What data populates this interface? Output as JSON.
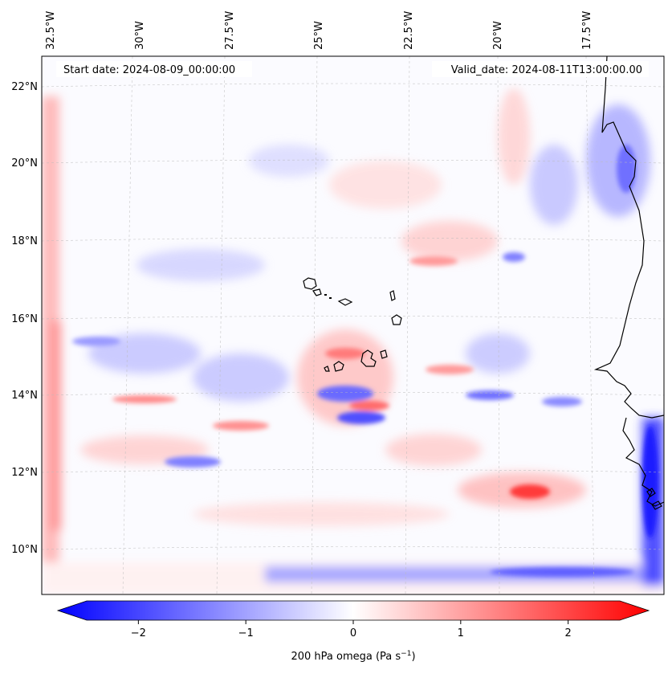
{
  "map": {
    "projection_note": "lat/lon",
    "top_labels": [
      "32.5°W",
      "30°W",
      "27.5°W",
      "25°W",
      "22.5°W",
      "20°W",
      "17.5°W"
    ],
    "left_labels": [
      "22°N",
      "20°N",
      "18°N",
      "16°N",
      "14°N",
      "12°N",
      "10°N"
    ],
    "start_date": "Start date: 2024-08-09_00:00:00",
    "valid_date": "Valid_date: 2024-08-11T13:00:00.00",
    "colors": {
      "negative": "#0000ff",
      "zero": "#ffffff",
      "positive": "#ff0000",
      "coast": "#000000",
      "grid": "#bbbbbb"
    }
  },
  "colorbar": {
    "min": -2.75,
    "max": 2.75,
    "ticks": [
      -2,
      -1,
      0,
      1,
      2
    ],
    "tick_labels": [
      "−2",
      "−1",
      "0",
      "1",
      "2"
    ],
    "label_main": "200 hPa omega (Pa s",
    "label_exp": "−1",
    "label_close": ")"
  }
}
